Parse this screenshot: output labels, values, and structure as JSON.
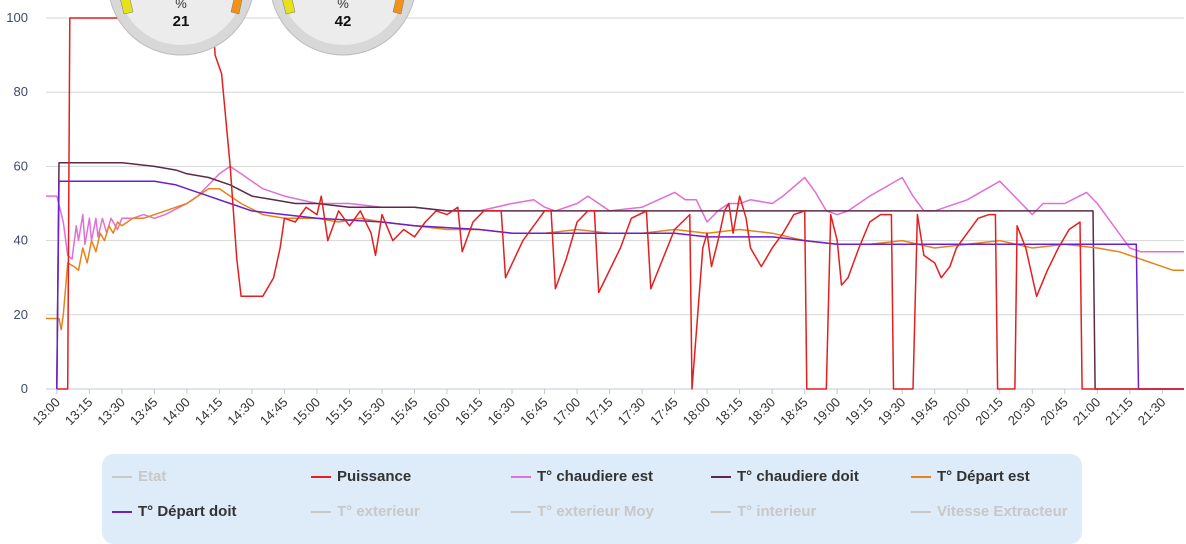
{
  "gauges": [
    {
      "unit": "%",
      "value": "21"
    },
    {
      "unit": "%",
      "value": "42"
    }
  ],
  "colors": {
    "puissance": "#e31f1f",
    "chaudiere_est": "#e06fd6",
    "chaudiere_doit": "#5a2a4a",
    "depart_est": "#e8831a",
    "depart_doit": "#6a1fd0",
    "hidden": "#c8c8c8",
    "grid": "#d6d6d6",
    "legend_bg": "#deebf8"
  },
  "legend": [
    {
      "label": "Etat",
      "color": "#c8c8c8",
      "active": false
    },
    {
      "label": "Puissance",
      "color": "#e31f1f",
      "active": true
    },
    {
      "label": "T° chaudiere est",
      "color": "#e06fd6",
      "active": true
    },
    {
      "label": "T° chaudiere doit",
      "color": "#5a2a4a",
      "active": true
    },
    {
      "label": "T° Départ est",
      "color": "#e8831a",
      "active": true
    },
    {
      "label": "T° Départ doit",
      "color": "#6a1fd0",
      "active": true
    },
    {
      "label": "T° exterieur",
      "color": "#c8c8c8",
      "active": false
    },
    {
      "label": "T° exterieur Moy",
      "color": "#c8c8c8",
      "active": false
    },
    {
      "label": "T° interieur",
      "color": "#c8c8c8",
      "active": false
    },
    {
      "label": "Vitesse Extracteur",
      "color": "#c8c8c8",
      "active": false
    }
  ],
  "chart_data": {
    "type": "line",
    "grid": true,
    "ylim": [
      0,
      100
    ],
    "yticks": [
      0,
      20,
      40,
      60,
      80,
      100
    ],
    "xlim": [
      "12:55",
      "21:40"
    ],
    "xticks": [
      "13:00",
      "13:15",
      "13:30",
      "13:45",
      "14:00",
      "14:15",
      "14:30",
      "14:45",
      "15:00",
      "15:15",
      "15:30",
      "15:45",
      "16:00",
      "16:15",
      "16:30",
      "16:45",
      "17:00",
      "17:15",
      "17:30",
      "17:45",
      "18:00",
      "18:15",
      "18:30",
      "18:45",
      "19:00",
      "19:15",
      "19:30",
      "19:45",
      "20:00",
      "20:15",
      "20:30",
      "20:45",
      "21:00",
      "21:15",
      "21:30"
    ],
    "series": [
      {
        "name": "Puissance",
        "color": "#e31f1f",
        "points": [
          [
            "13:00",
            0
          ],
          [
            "13:05",
            0
          ],
          [
            "13:06",
            100
          ],
          [
            "14:12",
            100
          ],
          [
            "14:13",
            90
          ],
          [
            "14:16",
            85
          ],
          [
            "14:20",
            60
          ],
          [
            "14:23",
            35
          ],
          [
            "14:25",
            25
          ],
          [
            "14:35",
            25
          ],
          [
            "14:40",
            30
          ],
          [
            "14:43",
            38
          ],
          [
            "14:45",
            46
          ],
          [
            "14:50",
            45
          ],
          [
            "14:55",
            49
          ],
          [
            "15:00",
            47
          ],
          [
            "15:02",
            52
          ],
          [
            "15:05",
            40
          ],
          [
            "15:10",
            48
          ],
          [
            "15:15",
            44
          ],
          [
            "15:20",
            48
          ],
          [
            "15:25",
            42
          ],
          [
            "15:27",
            36
          ],
          [
            "15:30",
            47
          ],
          [
            "15:35",
            40
          ],
          [
            "15:40",
            43
          ],
          [
            "15:45",
            41
          ],
          [
            "15:50",
            45
          ],
          [
            "15:55",
            48
          ],
          [
            "16:00",
            47
          ],
          [
            "16:05",
            49
          ],
          [
            "16:07",
            37
          ],
          [
            "16:12",
            45
          ],
          [
            "16:17",
            48
          ],
          [
            "16:22",
            48
          ],
          [
            "16:25",
            48
          ],
          [
            "16:27",
            30
          ],
          [
            "16:35",
            40
          ],
          [
            "16:45",
            48
          ],
          [
            "16:48",
            48
          ],
          [
            "16:50",
            27
          ],
          [
            "16:55",
            35
          ],
          [
            "17:00",
            45
          ],
          [
            "17:05",
            48
          ],
          [
            "17:08",
            48
          ],
          [
            "17:10",
            26
          ],
          [
            "17:20",
            38
          ],
          [
            "17:25",
            46
          ],
          [
            "17:32",
            48
          ],
          [
            "17:34",
            27
          ],
          [
            "17:45",
            43
          ],
          [
            "17:52",
            47
          ],
          [
            "17:53",
            0
          ],
          [
            "17:58",
            38
          ],
          [
            "18:00",
            42
          ],
          [
            "18:02",
            33
          ],
          [
            "18:05",
            40
          ],
          [
            "18:08",
            48
          ],
          [
            "18:10",
            50
          ],
          [
            "18:12",
            42
          ],
          [
            "18:15",
            52
          ],
          [
            "18:18",
            46
          ],
          [
            "18:20",
            38
          ],
          [
            "18:25",
            33
          ],
          [
            "18:30",
            38
          ],
          [
            "18:35",
            42
          ],
          [
            "18:40",
            47
          ],
          [
            "18:45",
            48
          ],
          [
            "18:46",
            0
          ],
          [
            "18:55",
            0
          ],
          [
            "18:57",
            47
          ],
          [
            "19:00",
            40
          ],
          [
            "19:02",
            28
          ],
          [
            "19:05",
            30
          ],
          [
            "19:10",
            38
          ],
          [
            "19:15",
            45
          ],
          [
            "19:20",
            47
          ],
          [
            "19:25",
            47
          ],
          [
            "19:26",
            0
          ],
          [
            "19:35",
            0
          ],
          [
            "19:37",
            47
          ],
          [
            "19:40",
            36
          ],
          [
            "19:45",
            34
          ],
          [
            "19:48",
            30
          ],
          [
            "19:52",
            33
          ],
          [
            "19:55",
            38
          ],
          [
            "20:00",
            42
          ],
          [
            "20:05",
            46
          ],
          [
            "20:10",
            47
          ],
          [
            "20:13",
            47
          ],
          [
            "20:14",
            0
          ],
          [
            "20:22",
            0
          ],
          [
            "20:23",
            44
          ],
          [
            "20:27",
            38
          ],
          [
            "20:32",
            25
          ],
          [
            "20:37",
            32
          ],
          [
            "20:42",
            38
          ],
          [
            "20:47",
            43
          ],
          [
            "20:52",
            45
          ],
          [
            "20:53",
            0
          ],
          [
            "21:40",
            0
          ]
        ]
      },
      {
        "name": "T° chaudiere est",
        "color": "#e06fd6",
        "points": [
          [
            "12:55",
            52
          ],
          [
            "13:00",
            52
          ],
          [
            "13:03",
            45
          ],
          [
            "13:05",
            36
          ],
          [
            "13:07",
            35
          ],
          [
            "13:09",
            44
          ],
          [
            "13:10",
            40
          ],
          [
            "13:12",
            47
          ],
          [
            "13:13",
            39
          ],
          [
            "13:15",
            46
          ],
          [
            "13:16",
            40
          ],
          [
            "13:18",
            46
          ],
          [
            "13:19",
            41
          ],
          [
            "13:21",
            46
          ],
          [
            "13:23",
            42
          ],
          [
            "13:25",
            46
          ],
          [
            "13:28",
            43
          ],
          [
            "13:30",
            46
          ],
          [
            "13:35",
            46
          ],
          [
            "13:40",
            47
          ],
          [
            "13:45",
            46
          ],
          [
            "13:50",
            47
          ],
          [
            "14:00",
            50
          ],
          [
            "14:05",
            52
          ],
          [
            "14:10",
            55
          ],
          [
            "14:15",
            58
          ],
          [
            "14:20",
            60
          ],
          [
            "14:25",
            58
          ],
          [
            "14:30",
            56
          ],
          [
            "14:35",
            54
          ],
          [
            "14:45",
            52
          ],
          [
            "15:00",
            50
          ],
          [
            "15:15",
            50
          ],
          [
            "15:30",
            49
          ],
          [
            "15:45",
            49
          ],
          [
            "16:00",
            48
          ],
          [
            "16:15",
            48
          ],
          [
            "16:30",
            50
          ],
          [
            "16:40",
            51
          ],
          [
            "16:45",
            49
          ],
          [
            "16:50",
            48
          ],
          [
            "17:00",
            50
          ],
          [
            "17:05",
            52
          ],
          [
            "17:10",
            50
          ],
          [
            "17:15",
            48
          ],
          [
            "17:30",
            49
          ],
          [
            "17:45",
            53
          ],
          [
            "17:50",
            51
          ],
          [
            "17:55",
            51
          ],
          [
            "18:00",
            45
          ],
          [
            "18:05",
            48
          ],
          [
            "18:10",
            50
          ],
          [
            "18:15",
            50
          ],
          [
            "18:20",
            51
          ],
          [
            "18:30",
            50
          ],
          [
            "18:35",
            52
          ],
          [
            "18:45",
            57
          ],
          [
            "18:50",
            53
          ],
          [
            "18:55",
            48
          ],
          [
            "19:00",
            47
          ],
          [
            "19:05",
            48
          ],
          [
            "19:15",
            52
          ],
          [
            "19:30",
            57
          ],
          [
            "19:35",
            52
          ],
          [
            "19:40",
            48
          ],
          [
            "19:45",
            48
          ],
          [
            "20:00",
            51
          ],
          [
            "20:15",
            56
          ],
          [
            "20:20",
            53
          ],
          [
            "20:30",
            47
          ],
          [
            "20:35",
            50
          ],
          [
            "20:45",
            50
          ],
          [
            "20:55",
            53
          ],
          [
            "21:00",
            50
          ],
          [
            "21:05",
            46
          ],
          [
            "21:10",
            42
          ],
          [
            "21:15",
            38
          ],
          [
            "21:20",
            37
          ],
          [
            "21:40",
            37
          ]
        ]
      },
      {
        "name": "T° chaudiere doit",
        "color": "#5a2a4a",
        "points": [
          [
            "13:00",
            0
          ],
          [
            "13:01",
            61
          ],
          [
            "13:30",
            61
          ],
          [
            "13:45",
            60
          ],
          [
            "13:55",
            59
          ],
          [
            "14:00",
            58
          ],
          [
            "14:10",
            57
          ],
          [
            "14:20",
            55
          ],
          [
            "14:30",
            52
          ],
          [
            "14:40",
            51
          ],
          [
            "14:50",
            50
          ],
          [
            "15:00",
            50
          ],
          [
            "15:15",
            49
          ],
          [
            "15:45",
            49
          ],
          [
            "16:00",
            48
          ],
          [
            "20:58",
            48
          ],
          [
            "20:59",
            0
          ],
          [
            "21:40",
            0
          ]
        ]
      },
      {
        "name": "T° Départ est",
        "color": "#e8831a",
        "points": [
          [
            "12:55",
            19
          ],
          [
            "13:01",
            19
          ],
          [
            "13:02",
            16
          ],
          [
            "13:03",
            20
          ],
          [
            "13:05",
            34
          ],
          [
            "13:08",
            33
          ],
          [
            "13:10",
            32
          ],
          [
            "13:12",
            38
          ],
          [
            "13:14",
            34
          ],
          [
            "13:16",
            40
          ],
          [
            "13:18",
            37
          ],
          [
            "13:20",
            42
          ],
          [
            "13:22",
            40
          ],
          [
            "13:24",
            44
          ],
          [
            "13:26",
            42
          ],
          [
            "13:28",
            45
          ],
          [
            "13:30",
            44
          ],
          [
            "13:35",
            46
          ],
          [
            "13:40",
            46
          ],
          [
            "13:50",
            48
          ],
          [
            "14:00",
            50
          ],
          [
            "14:05",
            52
          ],
          [
            "14:10",
            54
          ],
          [
            "14:15",
            54
          ],
          [
            "14:20",
            52
          ],
          [
            "14:25",
            50
          ],
          [
            "14:35",
            47
          ],
          [
            "14:45",
            46
          ],
          [
            "15:00",
            46
          ],
          [
            "15:10",
            45
          ],
          [
            "15:20",
            46
          ],
          [
            "15:30",
            45
          ],
          [
            "15:45",
            44
          ],
          [
            "16:00",
            43
          ],
          [
            "16:15",
            43
          ],
          [
            "16:30",
            42
          ],
          [
            "16:45",
            42
          ],
          [
            "17:00",
            43
          ],
          [
            "17:15",
            42
          ],
          [
            "17:30",
            42
          ],
          [
            "17:45",
            43
          ],
          [
            "18:00",
            42
          ],
          [
            "18:15",
            43
          ],
          [
            "18:30",
            42
          ],
          [
            "18:45",
            40
          ],
          [
            "19:00",
            39
          ],
          [
            "19:15",
            39
          ],
          [
            "19:30",
            40
          ],
          [
            "19:45",
            38
          ],
          [
            "20:00",
            39
          ],
          [
            "20:15",
            40
          ],
          [
            "20:30",
            38
          ],
          [
            "20:45",
            39
          ],
          [
            "21:00",
            38
          ],
          [
            "21:10",
            37
          ],
          [
            "21:20",
            35
          ],
          [
            "21:30",
            33
          ],
          [
            "21:35",
            32
          ],
          [
            "21:40",
            32
          ]
        ]
      },
      {
        "name": "T° Départ doit",
        "color": "#6a1fd0",
        "points": [
          [
            "13:00",
            0
          ],
          [
            "13:01",
            56
          ],
          [
            "13:45",
            56
          ],
          [
            "13:55",
            55
          ],
          [
            "14:00",
            54
          ],
          [
            "14:10",
            52
          ],
          [
            "14:20",
            50
          ],
          [
            "14:30",
            48
          ],
          [
            "14:45",
            47
          ],
          [
            "15:00",
            46
          ],
          [
            "15:30",
            45
          ],
          [
            "15:45",
            44
          ],
          [
            "16:15",
            43
          ],
          [
            "16:30",
            42
          ],
          [
            "17:45",
            42
          ],
          [
            "18:00",
            41
          ],
          [
            "18:30",
            41
          ],
          [
            "18:45",
            40
          ],
          [
            "19:00",
            39
          ],
          [
            "21:18",
            39
          ],
          [
            "21:19",
            0
          ],
          [
            "21:40",
            0
          ]
        ]
      }
    ]
  }
}
